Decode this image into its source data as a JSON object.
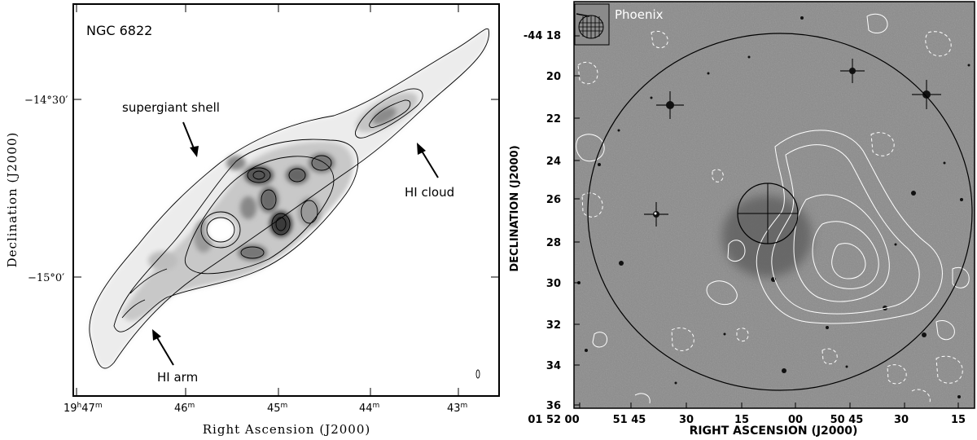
{
  "left_panel": {
    "title": "NGC 6822",
    "xlabel": "Right Ascension (J2000)",
    "ylabel": "Declination (J2000)",
    "x_ticks": [
      {
        "main": "19",
        "sup1": "h",
        "mid": "47",
        "sup2": "m"
      },
      {
        "main": "46",
        "sup2": "m"
      },
      {
        "main": "45",
        "sup2": "m"
      },
      {
        "main": "44",
        "sup2": "m"
      },
      {
        "main": "43",
        "sup2": "m"
      }
    ],
    "y_ticks": [
      {
        "label": "−14°30′",
        "dec": -14.5
      },
      {
        "label": "−15°0′",
        "dec": -15.0
      }
    ],
    "annotations": [
      {
        "key": "supergiant-shell",
        "text": "supergiant shell"
      },
      {
        "key": "hi-cloud",
        "text": "HI cloud"
      },
      {
        "key": "hi-arm",
        "text": "HI arm"
      }
    ]
  },
  "right_panel": {
    "title": "Phoenix",
    "xlabel": "RIGHT ASCENSION (J2000)",
    "ylabel": "DECLINATION (J2000)",
    "x_ticks": [
      "01 52 00",
      "51 45",
      "30",
      "15",
      "00",
      "50 45",
      "30",
      "15"
    ],
    "y_ticks": [
      "-44 18",
      "20",
      "22",
      "24",
      "26",
      "28",
      "30",
      "32",
      "34",
      "36"
    ]
  },
  "colors": {
    "frame": "#000000",
    "left_background": "#ffffff",
    "right_background": "#8a8a8a",
    "contour_right": "#ffffff"
  }
}
